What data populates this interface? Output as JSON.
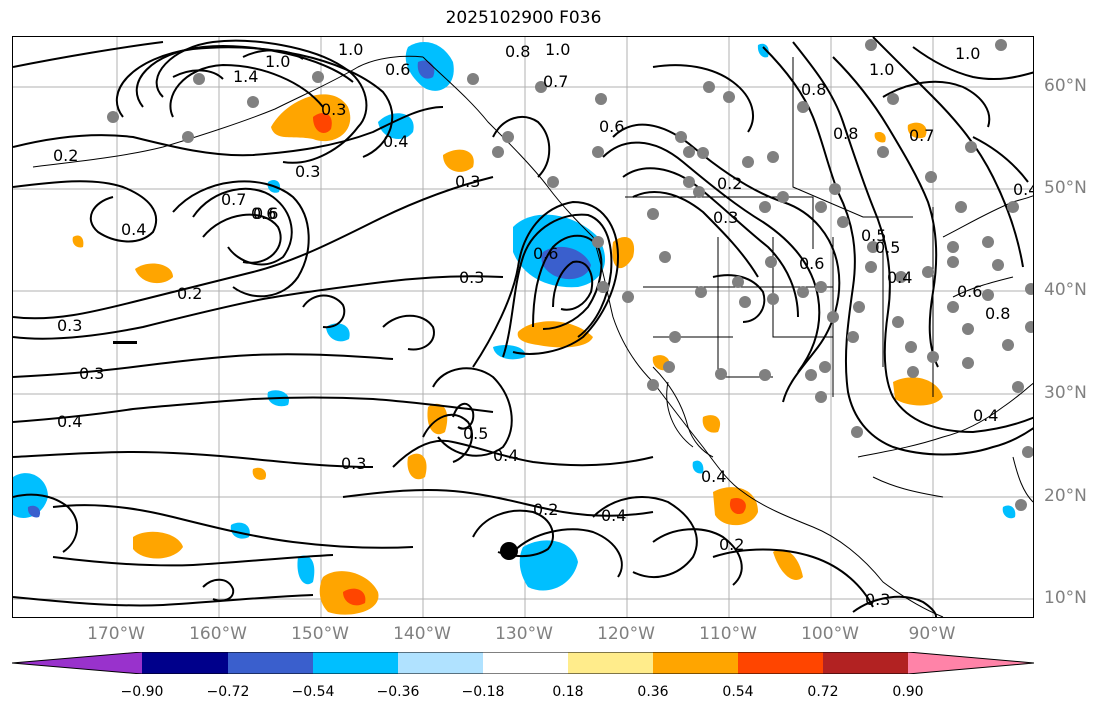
{
  "title": "2025102900 F036",
  "lon_labels": [
    "170°W",
    "160°W",
    "150°W",
    "140°W",
    "130°W",
    "120°W",
    "110°W",
    "100°W",
    "90°W"
  ],
  "lat_labels": [
    "60°N",
    "50°N",
    "40°N",
    "30°N",
    "20°N",
    "10°N"
  ],
  "colorbar": {
    "tick_labels": [
      "−0.90",
      "−0.72",
      "−0.54",
      "−0.36",
      "−0.18",
      "0.18",
      "0.36",
      "0.54",
      "0.72",
      "0.90"
    ],
    "colors": [
      "#9932cc",
      "#00008b",
      "#3a5fcd",
      "#00bfff",
      "#b0e2ff",
      "#ffffff",
      "#ffec8b",
      "#ffa500",
      "#ff4500",
      "#b22222",
      "#ff83a8"
    ]
  },
  "contour_labels": [
    "1.0",
    "1.0",
    "1.4",
    "1.0",
    "0.8",
    "0.7",
    "0.6",
    "0.4",
    "0.3",
    "0.2",
    "0.3",
    "0.4",
    "0.5",
    "0.6",
    "0.7",
    "0.6",
    "0.4",
    "0.2",
    "0.3",
    "0.3",
    "0.3",
    "0.4",
    "0.3",
    "0.5",
    "0.4",
    "0.2",
    "0.4",
    "0.4",
    "0.2",
    "0.3",
    "0.6",
    "0.3",
    "0.2",
    "0.8",
    "0.6",
    "0.8",
    "0.7",
    "0.5",
    "0.6",
    "0.4",
    "0.6",
    "0.8",
    "0.4",
    "1.0",
    "1.0",
    "0.3"
  ],
  "legend_colors": {
    "station_dot": "#808080",
    "marker": "#000000",
    "grid": "#b0b0b0"
  }
}
